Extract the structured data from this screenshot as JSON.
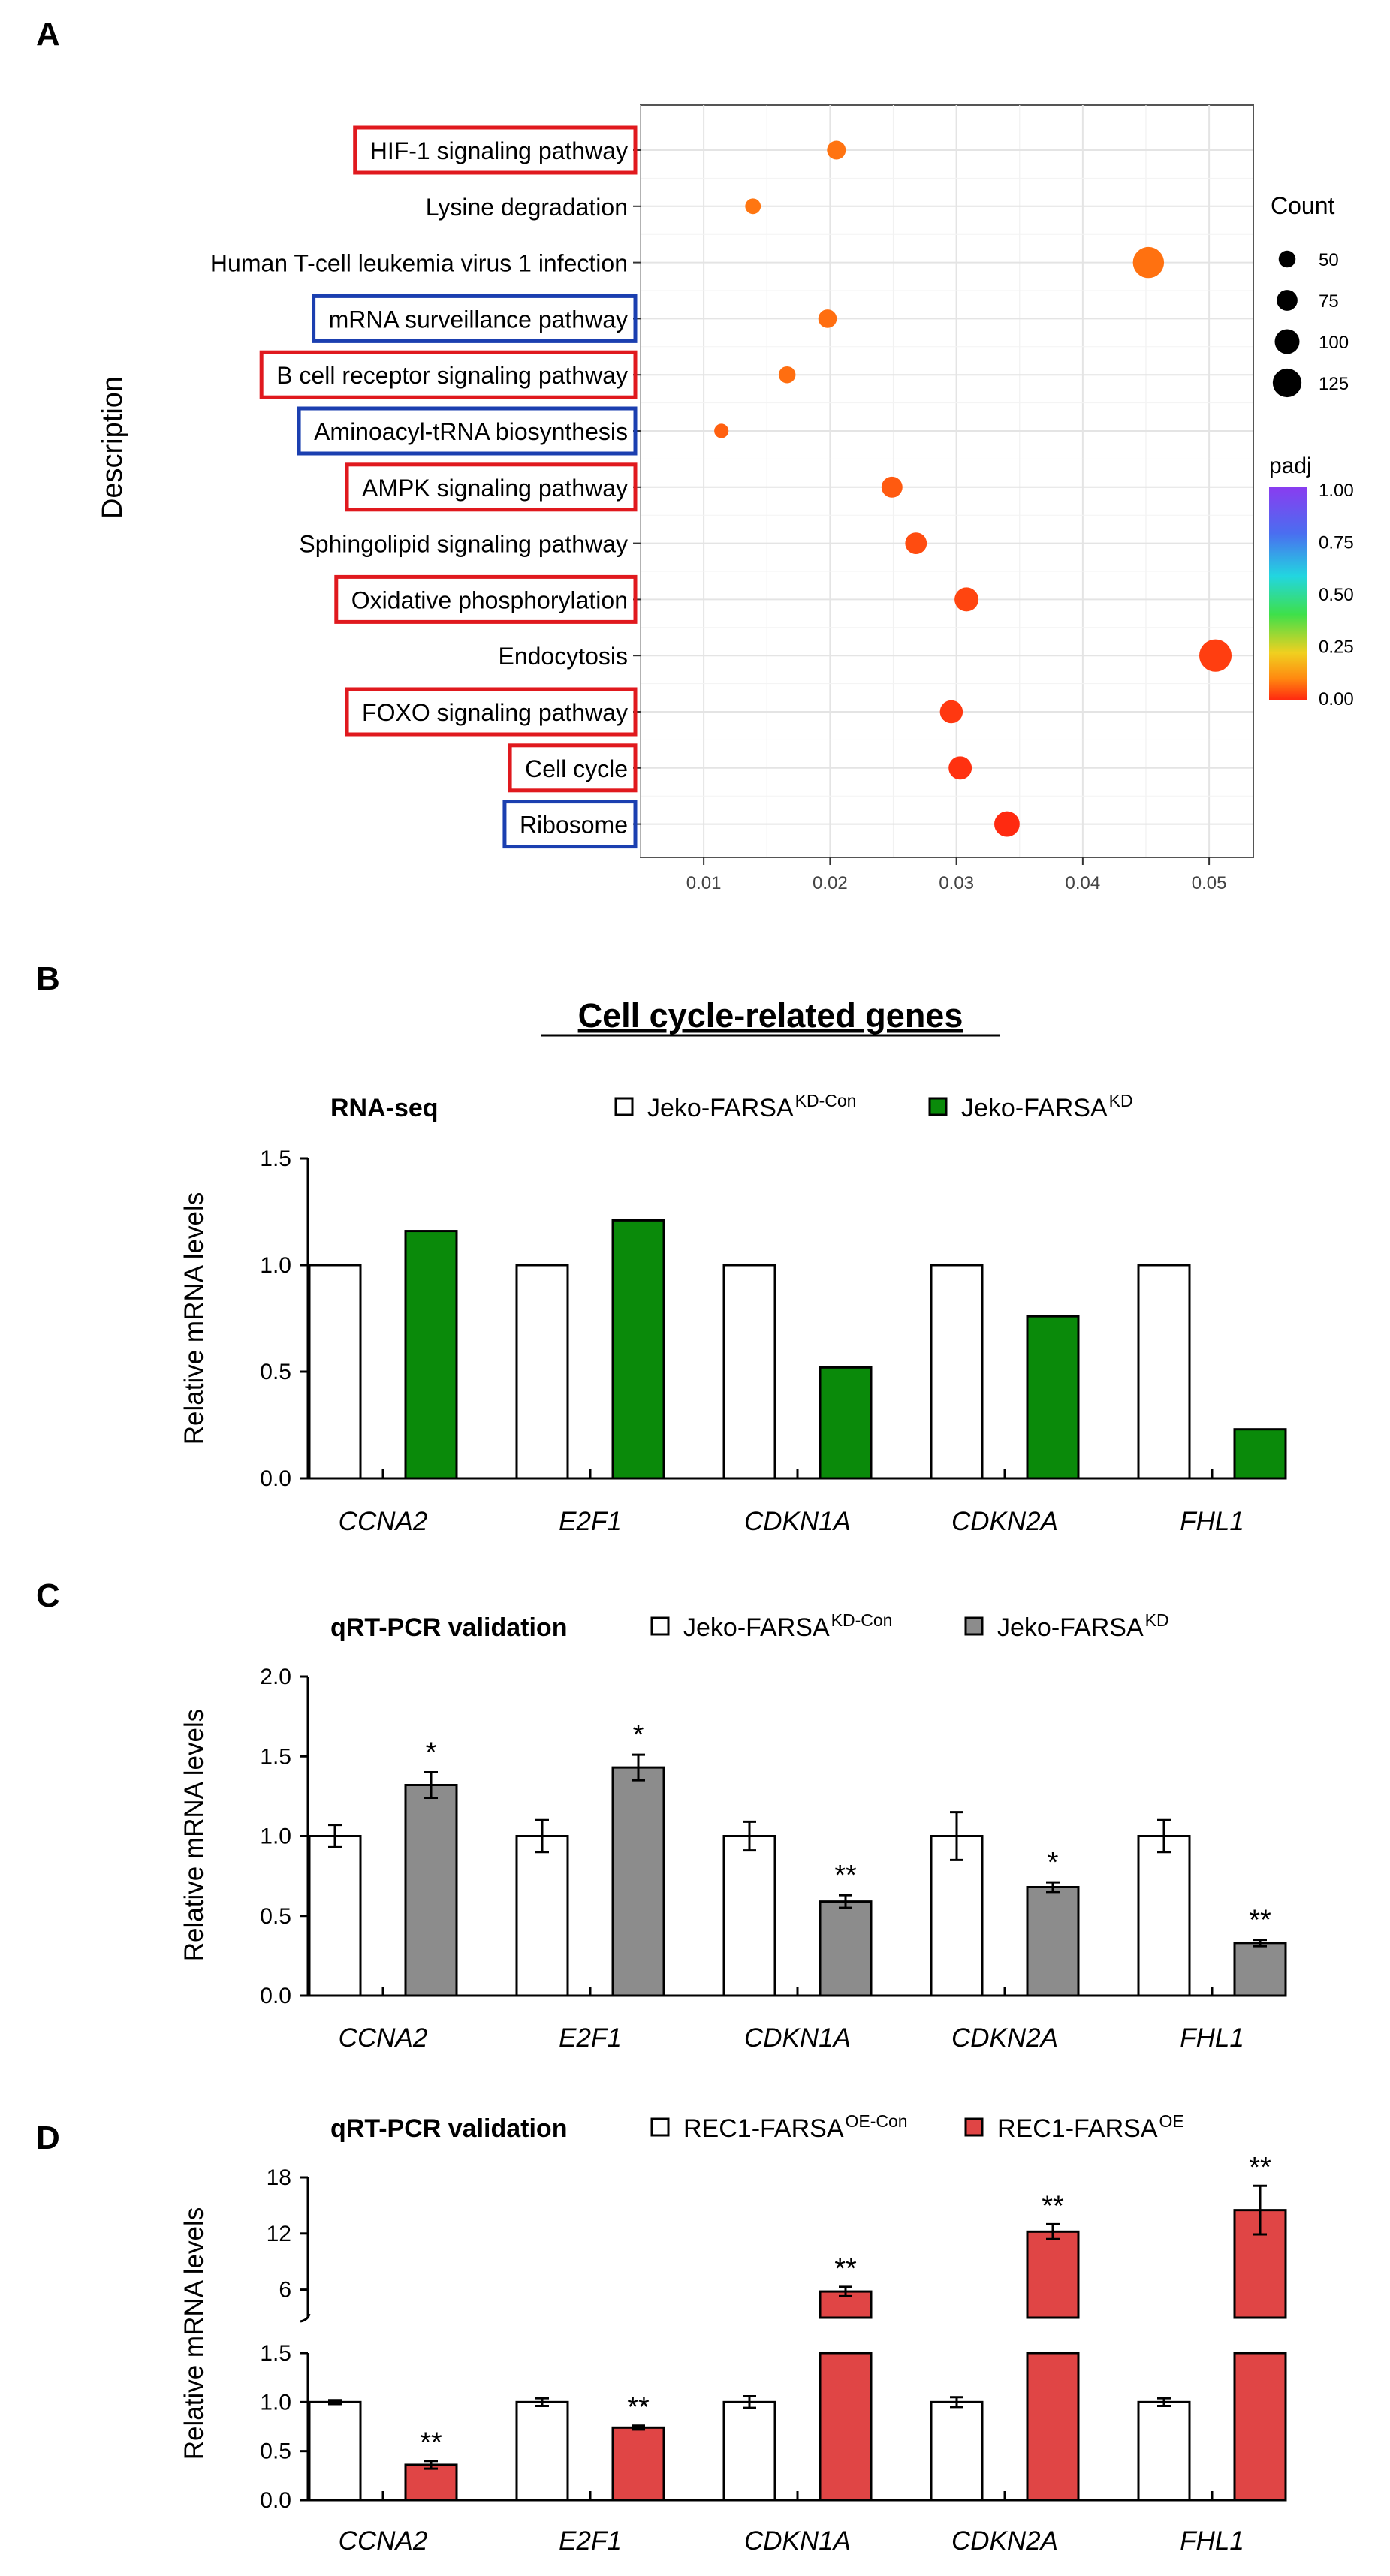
{
  "panels": {
    "a": "A",
    "b": "B",
    "c": "C",
    "d": "D"
  },
  "colors": {
    "green": "#0a8a0a",
    "gray": "#8c8c8c",
    "red": "#e04545",
    "highlight_red": "#e0191e",
    "highlight_blue": "#1b3fb0"
  },
  "chart_data": [
    {
      "id": "A",
      "type": "scatter",
      "ylabel": "Description",
      "x_ticks": [
        "0.01",
        "0.02",
        "0.03",
        "0.04",
        "0.05"
      ],
      "xlim": [
        0.005,
        0.0535
      ],
      "points": [
        {
          "label": "HIF-1 signaling pathway",
          "x": 0.0205,
          "count": 62,
          "padj": 0.12,
          "box": "red"
        },
        {
          "label": "Lysine degradation",
          "x": 0.0139,
          "count": 42,
          "padj": 0.13,
          "box": ""
        },
        {
          "label": "Human T-cell leukemia virus 1 infection",
          "x": 0.0452,
          "count": 140,
          "padj": 0.11,
          "box": ""
        },
        {
          "label": "mRNA surveillance pathway",
          "x": 0.0198,
          "count": 60,
          "padj": 0.1,
          "box": "blue"
        },
        {
          "label": "B cell receptor signaling pathway",
          "x": 0.0166,
          "count": 50,
          "padj": 0.1,
          "box": "red"
        },
        {
          "label": "Aminoacyl-tRNA biosynthesis",
          "x": 0.0114,
          "count": 34,
          "padj": 0.08,
          "box": "blue"
        },
        {
          "label": "AMPK signaling pathway",
          "x": 0.0249,
          "count": 76,
          "padj": 0.07,
          "box": "red"
        },
        {
          "label": "Sphingolipid signaling pathway",
          "x": 0.0268,
          "count": 80,
          "padj": 0.05,
          "box": ""
        },
        {
          "label": "Oxidative phosphorylation",
          "x": 0.0308,
          "count": 95,
          "padj": 0.04,
          "box": "red"
        },
        {
          "label": "Endocytosis",
          "x": 0.0505,
          "count": 148,
          "padj": 0.03,
          "box": ""
        },
        {
          "label": "FOXO signaling pathway",
          "x": 0.0296,
          "count": 88,
          "padj": 0.02,
          "box": "red"
        },
        {
          "label": "Cell cycle",
          "x": 0.0303,
          "count": 90,
          "padj": 0.01,
          "box": "red"
        },
        {
          "label": "Ribosome",
          "x": 0.034,
          "count": 104,
          "padj": 0.0,
          "box": "blue"
        }
      ],
      "legend": {
        "count_title": "Count",
        "count_values": [
          50,
          75,
          100,
          125
        ],
        "count_labels": [
          "50",
          "75",
          "100",
          "125"
        ],
        "padj_title": "padj",
        "padj_labels": [
          "1.00",
          "0.75",
          "0.50",
          "0.25",
          "0.00"
        ]
      }
    },
    {
      "id": "B",
      "type": "bar",
      "heading": "Cell cycle-related genes",
      "title": "RNA-seq",
      "ylabel": "Relative mRNA levels",
      "ylim": [
        0,
        1.5
      ],
      "y_ticks": [
        "0.0",
        "0.5",
        "1.0",
        "1.5"
      ],
      "categories": [
        "CCNA2",
        "E2F1",
        "CDKN1A",
        "CDKN2A",
        "FHL1"
      ],
      "legend": [
        {
          "name": "Jeko-FARSA",
          "sup": "KD-Con"
        },
        {
          "name": "Jeko-FARSA",
          "sup": "KD"
        }
      ],
      "series": [
        {
          "name": "Jeko-FARSAKD-Con",
          "values": [
            1.0,
            1.0,
            1.0,
            1.0,
            1.0
          ]
        },
        {
          "name": "Jeko-FARSAKD",
          "values": [
            1.16,
            1.21,
            0.52,
            0.76,
            0.23
          ]
        }
      ]
    },
    {
      "id": "C",
      "type": "bar",
      "title": "qRT-PCR validation",
      "ylabel": "Relative mRNA levels",
      "ylim": [
        0,
        2.0
      ],
      "y_ticks": [
        "0.0",
        "0.5",
        "1.0",
        "1.5",
        "2.0"
      ],
      "categories": [
        "CCNA2",
        "E2F1",
        "CDKN1A",
        "CDKN2A",
        "FHL1"
      ],
      "legend": [
        {
          "name": "Jeko-FARSA",
          "sup": "KD-Con"
        },
        {
          "name": "Jeko-FARSA",
          "sup": "KD"
        }
      ],
      "series": [
        {
          "name": "Jeko-FARSAKD-Con",
          "values": [
            1.0,
            1.0,
            1.0,
            1.0,
            1.0
          ],
          "errors": [
            0.07,
            0.1,
            0.09,
            0.15,
            0.1
          ]
        },
        {
          "name": "Jeko-FARSAKD",
          "values": [
            1.32,
            1.43,
            0.59,
            0.68,
            0.33
          ],
          "errors": [
            0.08,
            0.08,
            0.04,
            0.03,
            0.02
          ]
        }
      ],
      "significance": [
        "*",
        "*",
        "**",
        "*",
        "**"
      ]
    },
    {
      "id": "D",
      "type": "bar",
      "title": "qRT-PCR validation",
      "ylabel": "Relative mRNA levels",
      "axis_break": true,
      "lower_ylim": [
        0,
        1.5
      ],
      "lower_ticks": [
        "0.0",
        "0.5",
        "1.0",
        "1.5"
      ],
      "upper_ylim": [
        3,
        18
      ],
      "upper_ticks": [
        "6",
        "12",
        "18"
      ],
      "categories": [
        "CCNA2",
        "E2F1",
        "CDKN1A",
        "CDKN2A",
        "FHL1"
      ],
      "legend": [
        {
          "name": "REC1-FARSA",
          "sup": "OE-Con"
        },
        {
          "name": "REC1-FARSA",
          "sup": "OE"
        }
      ],
      "series": [
        {
          "name": "REC1-FARSAOE-Con",
          "values": [
            1.0,
            1.0,
            1.0,
            1.0,
            1.0
          ],
          "errors": [
            0.02,
            0.04,
            0.06,
            0.05,
            0.04
          ]
        },
        {
          "name": "REC1-FARSAOE",
          "values": [
            0.36,
            0.74,
            5.8,
            12.2,
            14.5
          ],
          "errors": [
            0.04,
            0.02,
            0.5,
            0.8,
            2.6
          ]
        }
      ],
      "significance": [
        "**",
        "**",
        "**",
        "**",
        "**"
      ]
    }
  ]
}
